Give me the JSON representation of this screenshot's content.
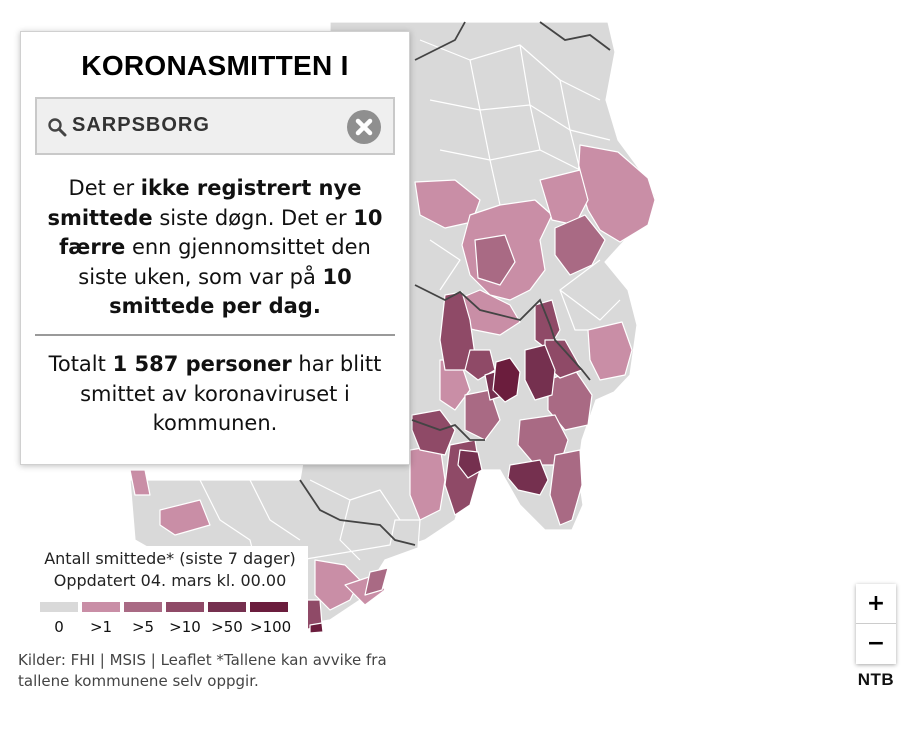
{
  "panel": {
    "title": "KORONASMITTEN I",
    "search_value": "SARPSBORG",
    "daily": {
      "t1": "Det er ",
      "b1": "ikke registrert nye smittede",
      "t2": " siste døgn. Det er ",
      "b2": "10 færre",
      "t3": " enn gjennomsittet den siste uken, som var på ",
      "b3": "10 smittede per dag."
    },
    "total": {
      "t1": "Totalt ",
      "b1": "1 587 personer",
      "t2": " har blitt smittet av koronaviruset i kommunen."
    }
  },
  "legend": {
    "title": "Antall smittede* (siste 7 dager)",
    "updated": "Oppdatert 04. mars kl. 00.00",
    "items": [
      {
        "label": "0",
        "color": "#d9d9d9"
      },
      {
        "label": ">1",
        "color": "#c98ea6"
      },
      {
        "label": ">5",
        "color": "#a96a84"
      },
      {
        "label": ">10",
        "color": "#8f4a67"
      },
      {
        "label": ">50",
        "color": "#75304f"
      },
      {
        "label": ">100",
        "color": "#6b1d3d"
      }
    ]
  },
  "sources": "Kilder: FHI | MSIS | Leaflet *Tallene kan avvike fra tallene kommunene selv oppgir.",
  "zoom": {
    "in_label": "+",
    "out_label": "−"
  },
  "brand": "NTB",
  "colors": {
    "no_cases": "#d9d9d9",
    "gt1": "#c98ea6",
    "gt5": "#a96a84",
    "gt10": "#8f4a67",
    "gt50": "#75304f",
    "gt100": "#6b1d3d",
    "county_border": "#444444",
    "municipality_border": "#ffffff"
  },
  "icons": {
    "search": "search-icon",
    "clear": "close-circle-icon"
  }
}
